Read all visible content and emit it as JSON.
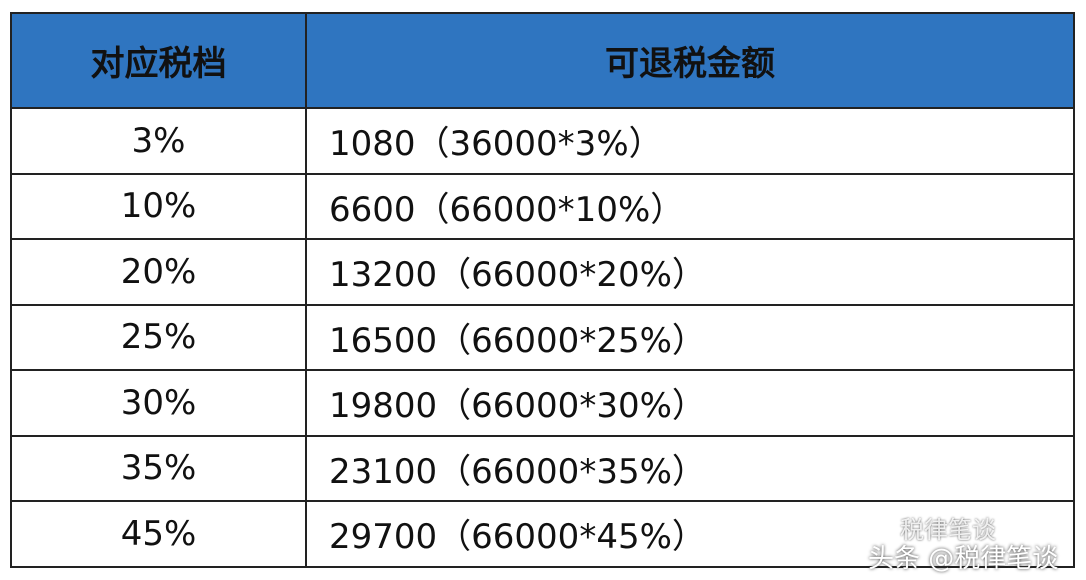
{
  "table": {
    "header": [
      "对应税档",
      "可退税金额"
    ],
    "rows": [
      [
        "3%",
        "1080（36000*3%）"
      ],
      [
        "10%",
        "6600（66000*10%）"
      ],
      [
        "20%",
        "13200（66000*20%）"
      ],
      [
        "25%",
        "16500（66000*25%）"
      ],
      [
        "30%",
        "19800（66000*30%）"
      ],
      [
        "35%",
        "23100（66000*35%）"
      ],
      [
        "45%",
        "29700（66000*45%）"
      ]
    ]
  },
  "watermark": {
    "account": "税律笔谈",
    "source": "头条 @税律笔谈"
  }
}
